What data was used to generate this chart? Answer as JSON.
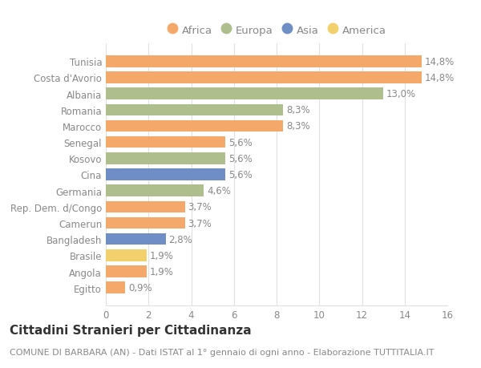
{
  "categories": [
    "Tunisia",
    "Costa d'Avorio",
    "Albania",
    "Romania",
    "Marocco",
    "Senegal",
    "Kosovo",
    "Cina",
    "Germania",
    "Rep. Dem. d/Congo",
    "Camerun",
    "Bangladesh",
    "Brasile",
    "Angola",
    "Egitto"
  ],
  "values": [
    14.8,
    14.8,
    13.0,
    8.3,
    8.3,
    5.6,
    5.6,
    5.6,
    4.6,
    3.7,
    3.7,
    2.8,
    1.9,
    1.9,
    0.9
  ],
  "labels": [
    "14,8%",
    "14,8%",
    "13,0%",
    "8,3%",
    "8,3%",
    "5,6%",
    "5,6%",
    "5,6%",
    "4,6%",
    "3,7%",
    "3,7%",
    "2,8%",
    "1,9%",
    "1,9%",
    "0,9%"
  ],
  "continent": [
    "Africa",
    "Africa",
    "Europa",
    "Europa",
    "Africa",
    "Africa",
    "Europa",
    "Asia",
    "Europa",
    "Africa",
    "Africa",
    "Asia",
    "America",
    "Africa",
    "Africa"
  ],
  "colors": {
    "Africa": "#F4A96A",
    "Europa": "#AEBE8C",
    "Asia": "#6E8EC5",
    "America": "#F2D06B"
  },
  "legend_order": [
    "Africa",
    "Europa",
    "Asia",
    "America"
  ],
  "title": "Cittadini Stranieri per Cittadinanza",
  "subtitle": "COMUNE DI BARBARA (AN) - Dati ISTAT al 1° gennaio di ogni anno - Elaborazione TUTTITALIA.IT",
  "xlim": [
    0,
    16
  ],
  "xticks": [
    0,
    2,
    4,
    6,
    8,
    10,
    12,
    14,
    16
  ],
  "background_color": "#ffffff",
  "grid_color": "#e0e0e0",
  "bar_height": 0.72,
  "label_fontsize": 8.5,
  "tick_fontsize": 8.5,
  "title_fontsize": 11,
  "subtitle_fontsize": 8,
  "text_color": "#888888"
}
